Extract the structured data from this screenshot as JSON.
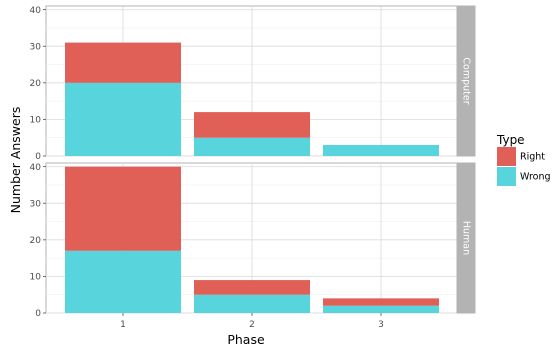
{
  "chart_data": {
    "type": "bar",
    "stacked": true,
    "facet": "vertical",
    "categories": [
      "1",
      "2",
      "3"
    ],
    "xlabel": "Phase",
    "ylabel": "Number Answers",
    "ylim": [
      0,
      41
    ],
    "yticks": [
      0,
      10,
      20,
      30,
      40
    ],
    "grid": true,
    "legend": {
      "title": "Type",
      "placement": "right",
      "entries": [
        {
          "name": "Right",
          "color": "#E06058"
        },
        {
          "name": "Wrong",
          "color": "#58D4DC"
        }
      ]
    },
    "panels": [
      {
        "label": "Computer",
        "series": [
          {
            "name": "Wrong",
            "values": [
              20,
              5,
              3
            ]
          },
          {
            "name": "Right",
            "values": [
              11,
              7,
              0
            ]
          }
        ]
      },
      {
        "label": "Human",
        "series": [
          {
            "name": "Wrong",
            "values": [
              17,
              5,
              2
            ]
          },
          {
            "name": "Right",
            "values": [
              23,
              4,
              2
            ]
          }
        ]
      }
    ]
  }
}
